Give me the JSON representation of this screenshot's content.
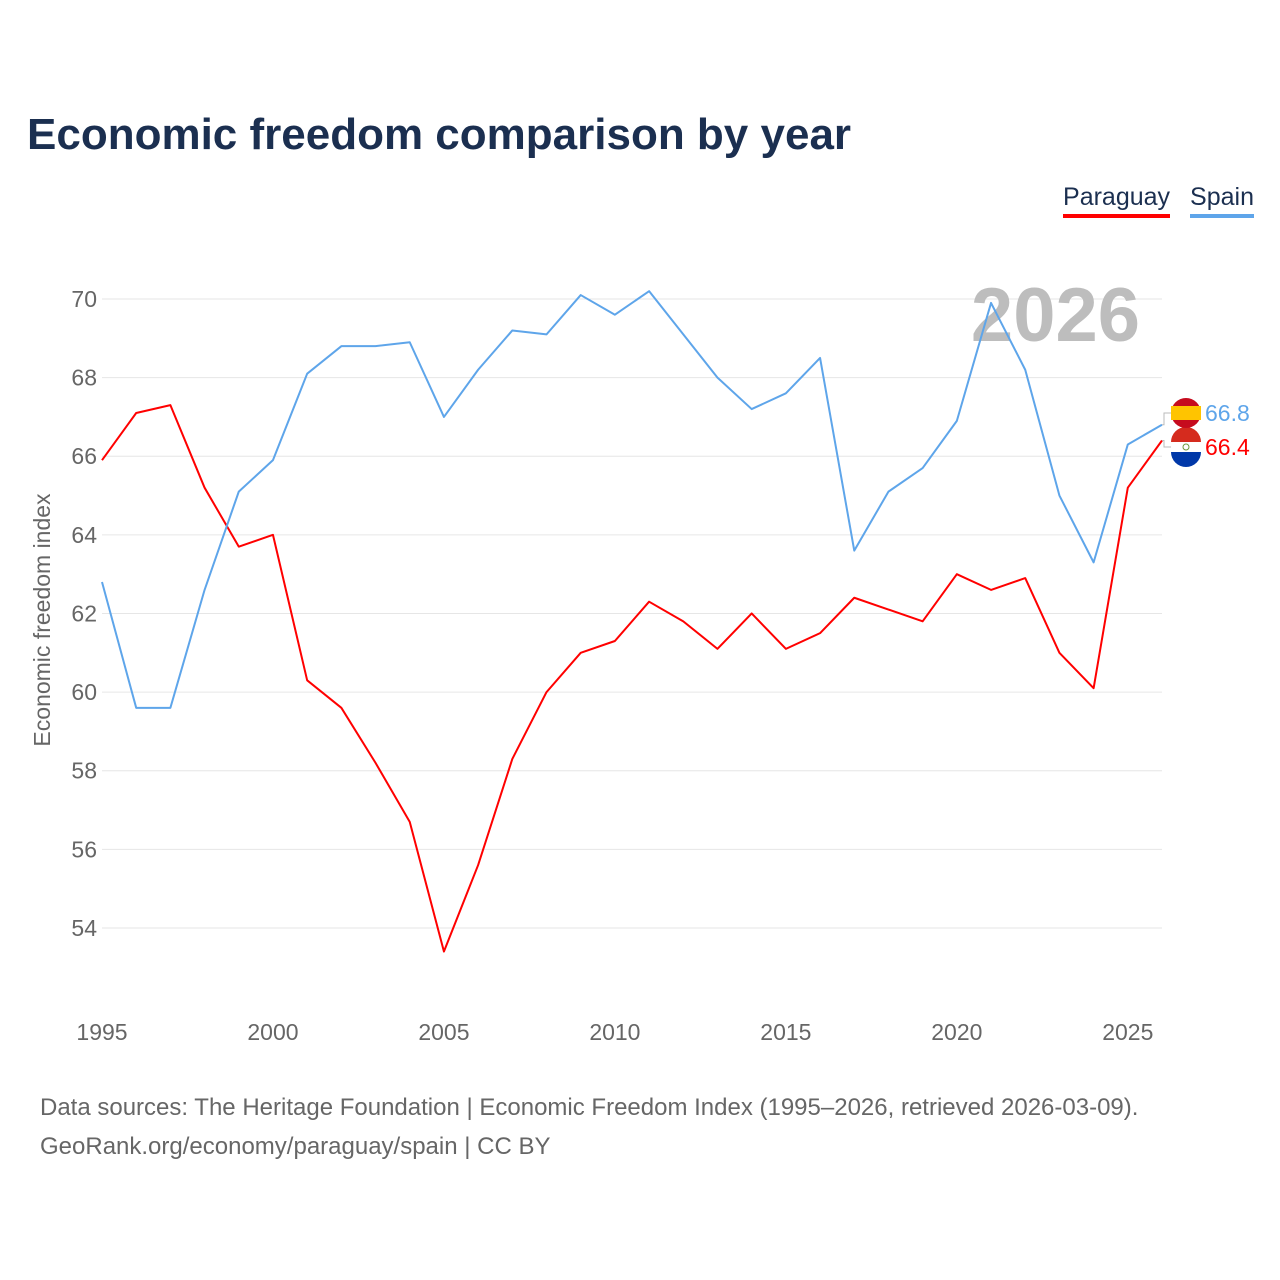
{
  "chart_data": {
    "type": "line",
    "title": "Economic freedom comparison by year",
    "xlabel": "",
    "ylabel": "Economic freedom index",
    "xlim": [
      1995,
      2026
    ],
    "ylim": [
      52,
      71
    ],
    "yticks": [
      54,
      56,
      58,
      60,
      62,
      64,
      66,
      68,
      70
    ],
    "xticks": [
      1995,
      2000,
      2005,
      2010,
      2015,
      2020,
      2025
    ],
    "grid": true,
    "legend_position": "top-right",
    "watermark": "2026",
    "x": [
      1995,
      1996,
      1997,
      1998,
      1999,
      2000,
      2001,
      2002,
      2003,
      2004,
      2005,
      2006,
      2007,
      2008,
      2009,
      2010,
      2011,
      2012,
      2013,
      2014,
      2015,
      2016,
      2017,
      2018,
      2019,
      2020,
      2021,
      2022,
      2023,
      2024,
      2025,
      2026
    ],
    "series": [
      {
        "name": "Paraguay",
        "color": "#ff0000",
        "end_label": "66.4",
        "values": [
          65.9,
          67.1,
          67.3,
          65.2,
          63.7,
          64.0,
          60.3,
          59.6,
          58.2,
          56.7,
          53.4,
          55.6,
          58.3,
          60.0,
          61.0,
          61.3,
          62.3,
          61.8,
          61.1,
          62.0,
          61.1,
          61.5,
          62.4,
          62.1,
          61.8,
          63.0,
          62.6,
          62.9,
          61.0,
          60.1,
          65.2,
          66.4
        ]
      },
      {
        "name": "Spain",
        "color": "#5ea5ea",
        "end_label": "66.8",
        "values": [
          62.8,
          59.6,
          59.6,
          62.6,
          65.1,
          65.9,
          68.1,
          68.8,
          68.8,
          68.9,
          67.0,
          68.2,
          69.2,
          69.1,
          70.1,
          69.6,
          70.2,
          69.1,
          68.0,
          67.2,
          67.6,
          68.5,
          63.6,
          65.1,
          65.7,
          66.9,
          69.9,
          68.2,
          65.0,
          63.3,
          66.3,
          66.8
        ]
      }
    ]
  },
  "footer": {
    "line1": "Data sources: The Heritage Foundation | Economic Freedom Index (1995–2026, retrieved 2026-03-09).",
    "line2": "GeoRank.org/economy/paraguay/spain | CC BY"
  }
}
